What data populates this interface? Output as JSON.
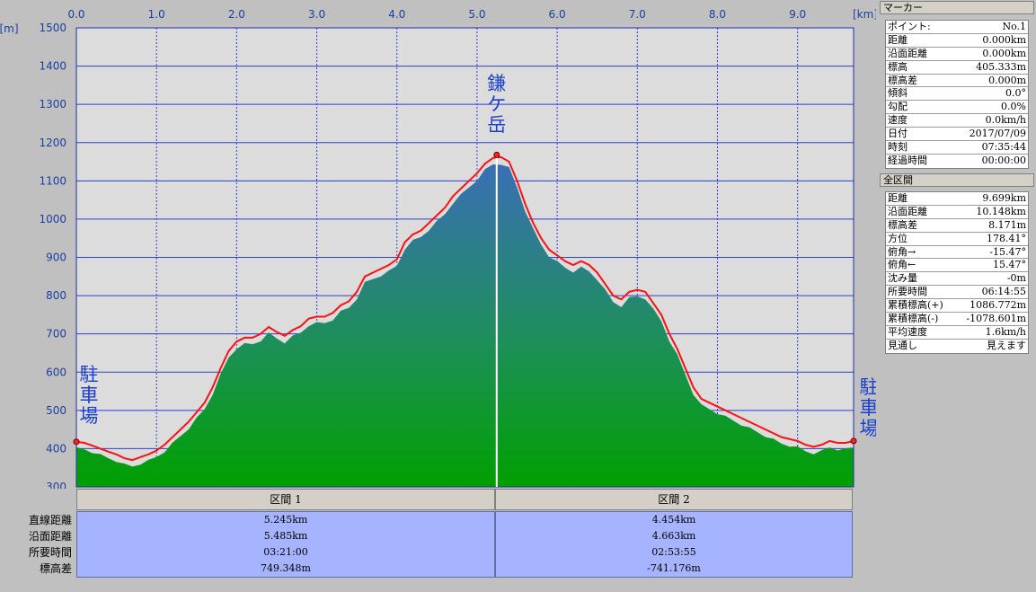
{
  "chart_data": {
    "type": "area",
    "x_unit": "[km]",
    "y_unit": "[m]",
    "xlim": [
      0,
      9.699
    ],
    "ylim": [
      300,
      1500
    ],
    "x_ticks": [
      "0.0",
      "1.0",
      "2.0",
      "3.0",
      "4.0",
      "5.0",
      "6.0",
      "7.0",
      "8.0",
      "9.0"
    ],
    "y_ticks": [
      "1500",
      "1400",
      "1300",
      "1200",
      "1100",
      "1000",
      "900",
      "800",
      "700",
      "600",
      "500",
      "400",
      "300"
    ],
    "annotations": [
      {
        "text": "駐車場",
        "x": 0.0
      },
      {
        "text": "鎌ケ岳",
        "x": 5.245
      },
      {
        "text": "駐車場",
        "x": 9.699
      }
    ],
    "series": [
      {
        "x": [
          0.0,
          0.1,
          0.2,
          0.3,
          0.4,
          0.5,
          0.6,
          0.7,
          0.8,
          0.9,
          1.0,
          1.1,
          1.2,
          1.3,
          1.4,
          1.5,
          1.6,
          1.7,
          1.8,
          1.9,
          2.0,
          2.1,
          2.2,
          2.3,
          2.4,
          2.5,
          2.6,
          2.7,
          2.8,
          2.9,
          3.0,
          3.1,
          3.2,
          3.3,
          3.4,
          3.5,
          3.6,
          3.7,
          3.8,
          3.9,
          4.0,
          4.1,
          4.2,
          4.3,
          4.4,
          4.5,
          4.6,
          4.7,
          4.8,
          4.9,
          5.0,
          5.1,
          5.2,
          5.3,
          5.4,
          5.5,
          5.6,
          5.7,
          5.8,
          5.9,
          6.0,
          6.1,
          6.2,
          6.3,
          6.4,
          6.5,
          6.6,
          6.7,
          6.8,
          6.9,
          7.0,
          7.1,
          7.2,
          7.3,
          7.4,
          7.5,
          7.6,
          7.7,
          7.8,
          7.9,
          8.0,
          8.1,
          8.2,
          8.3,
          8.4,
          8.5,
          8.6,
          8.7,
          8.8,
          8.9,
          9.0,
          9.1,
          9.2,
          9.3,
          9.4,
          9.5,
          9.6,
          9.699
        ],
        "values": [
          418,
          415,
          408,
          400,
          392,
          385,
          375,
          370,
          378,
          385,
          395,
          410,
          430,
          450,
          470,
          495,
          520,
          560,
          610,
          655,
          680,
          690,
          690,
          700,
          718,
          705,
          695,
          710,
          720,
          740,
          745,
          745,
          755,
          775,
          785,
          810,
          850,
          860,
          870,
          880,
          895,
          940,
          960,
          970,
          990,
          1010,
          1030,
          1060,
          1080,
          1100,
          1120,
          1145,
          1160,
          1162,
          1150,
          1100,
          1040,
          990,
          950,
          920,
          905,
          890,
          880,
          890,
          880,
          860,
          830,
          800,
          790,
          810,
          815,
          810,
          780,
          750,
          700,
          660,
          610,
          560,
          530,
          520,
          510,
          500,
          490,
          480,
          470,
          460,
          450,
          440,
          430,
          425,
          420,
          410,
          405,
          410,
          420,
          415,
          415,
          420
        ]
      }
    ]
  },
  "sections": {
    "headers": [
      "区間 1",
      "区間 2"
    ],
    "row_labels": [
      "直線距離",
      "沿面距離",
      "所要時間",
      "標高差"
    ],
    "col1": [
      "5.245km",
      "5.485km",
      "03:21:00",
      "749.348m"
    ],
    "col2": [
      "4.454km",
      "4.663km",
      "02:53:55",
      "-741.176m"
    ]
  },
  "marker_panel": {
    "title": "マーカー",
    "rows": [
      [
        "ポイント:",
        "No.1"
      ],
      [
        "距離",
        "0.000km"
      ],
      [
        "沿面距離",
        "0.000km"
      ],
      [
        "標高",
        "405.333m"
      ],
      [
        "標高差",
        "0.000m"
      ],
      [
        "傾斜",
        "0.0°"
      ],
      [
        "勾配",
        "0.0%"
      ],
      [
        "速度",
        "0.0km/h"
      ],
      [
        "日付",
        "2017/07/09"
      ],
      [
        "時刻",
        "07:35:44"
      ],
      [
        "経過時間",
        "00:00:00"
      ]
    ]
  },
  "total_panel": {
    "title": "全区間",
    "rows": [
      [
        "距離",
        "9.699km"
      ],
      [
        "沿面距離",
        "10.148km"
      ],
      [
        "標高差",
        "8.171m"
      ],
      [
        "方位",
        "178.41°"
      ],
      [
        "俯角→",
        "-15.47°"
      ],
      [
        "俯角←",
        "15.47°"
      ],
      [
        "沈み量",
        "-0m"
      ],
      [
        "所要時間",
        "06:14:55"
      ],
      [
        "累積標高(+)",
        "1086.772m"
      ],
      [
        "累積標高(-)",
        "-1078.601m"
      ],
      [
        "平均速度",
        "1.6km/h"
      ],
      [
        "見通し",
        "見えます"
      ]
    ]
  },
  "colors": {
    "plot_bg": "#dcdcdc",
    "grid": "#2f3fcf",
    "route": "#ff1010",
    "fill_top": "#3a6fb5",
    "fill_bottom": "#00a000",
    "marker_line": "#ffffff"
  }
}
